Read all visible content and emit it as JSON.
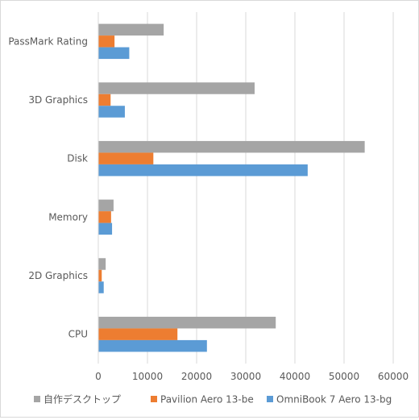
{
  "chart_data": {
    "type": "bar",
    "orientation": "horizontal",
    "title": "",
    "xlabel": "",
    "ylabel": "",
    "categories": [
      "PassMark Rating",
      "3D Graphics",
      "Disk",
      "Memory",
      "2D Graphics",
      "CPU"
    ],
    "x_ticks": [
      "0",
      "10000",
      "20000",
      "30000",
      "40000",
      "50000",
      "60000"
    ],
    "xlim": [
      0,
      60000
    ],
    "grid": true,
    "legend_position": "bottom",
    "series": [
      {
        "name": "自作デスクトップ",
        "color": "#a5a5a5",
        "values": [
          13300,
          31800,
          54200,
          3100,
          1500,
          36100
        ]
      },
      {
        "name": "Pavilion Aero 13-be",
        "color": "#ed7d31",
        "values": [
          3300,
          2500,
          11200,
          2600,
          700,
          16100
        ]
      },
      {
        "name": "OmniBook 7 Aero 13-bg",
        "color": "#5b9bd5",
        "values": [
          6300,
          5400,
          42600,
          2800,
          1100,
          22100
        ]
      }
    ]
  }
}
